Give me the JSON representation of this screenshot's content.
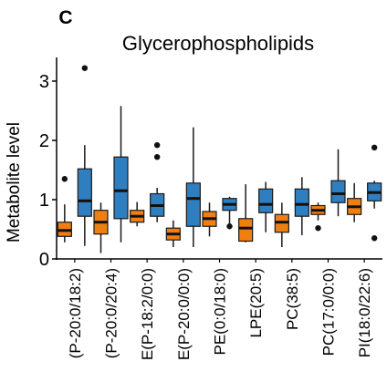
{
  "panel_label": "C",
  "chart_data": {
    "type": "box",
    "title": "Glycerophospholipids",
    "ylabel": "Metabolite level",
    "xlabel": "",
    "ylim": [
      0,
      3.4
    ],
    "yticks": [
      0,
      1,
      2,
      3
    ],
    "grid": false,
    "legend": "none",
    "colors": {
      "orange": "#F07F12",
      "blue": "#2F7EC0",
      "outline": "#1a1a1a"
    },
    "categories": [
      "(P-20:0/18:2)",
      "(P-20:0/20:4)",
      "E(P-18:2/0:0)",
      "E(P-20:0/0:0)",
      "PE(0:0/18:0)",
      "LPE(20:5)",
      "PC(38:5)",
      "PC(17:0/0:0)",
      "PI(18:0/22:6)"
    ],
    "series": [
      {
        "color": "orange",
        "boxes": [
          {
            "whisker_low": 0.28,
            "q1": 0.38,
            "median": 0.48,
            "q3": 0.62,
            "whisker_high": 0.92,
            "outliers": [
              1.35
            ]
          },
          {
            "whisker_low": 0.1,
            "q1": 0.42,
            "median": 0.62,
            "q3": 0.82,
            "whisker_high": 0.95,
            "outliers": []
          },
          {
            "whisker_low": 0.55,
            "q1": 0.62,
            "median": 0.72,
            "q3": 0.82,
            "whisker_high": 0.96,
            "outliers": []
          },
          {
            "whisker_low": 0.2,
            "q1": 0.32,
            "median": 0.42,
            "q3": 0.52,
            "whisker_high": 0.65,
            "outliers": []
          },
          {
            "whisker_low": 0.38,
            "q1": 0.55,
            "median": 0.68,
            "q3": 0.8,
            "whisker_high": 0.95,
            "outliers": []
          },
          {
            "whisker_low": 0.28,
            "q1": 0.3,
            "median": 0.52,
            "q3": 0.68,
            "whisker_high": 1.26,
            "outliers": []
          },
          {
            "whisker_low": 0.2,
            "q1": 0.45,
            "median": 0.62,
            "q3": 0.75,
            "whisker_high": 0.95,
            "outliers": []
          },
          {
            "whisker_low": 0.65,
            "q1": 0.75,
            "median": 0.82,
            "q3": 0.9,
            "whisker_high": 0.95,
            "outliers": [
              0.52
            ]
          },
          {
            "whisker_low": 0.62,
            "q1": 0.75,
            "median": 0.88,
            "q3": 1.02,
            "whisker_high": 1.28,
            "outliers": []
          }
        ]
      },
      {
        "color": "blue",
        "boxes": [
          {
            "whisker_low": 0.22,
            "q1": 0.72,
            "median": 0.98,
            "q3": 1.52,
            "whisker_high": 1.92,
            "outliers": [
              3.22
            ]
          },
          {
            "whisker_low": 0.28,
            "q1": 0.68,
            "median": 1.15,
            "q3": 1.72,
            "whisker_high": 2.58,
            "outliers": []
          },
          {
            "whisker_low": 0.62,
            "q1": 0.72,
            "median": 0.9,
            "q3": 1.1,
            "whisker_high": 1.2,
            "outliers": [
              1.72,
              1.92
            ]
          },
          {
            "whisker_low": 0.2,
            "q1": 0.55,
            "median": 1.02,
            "q3": 1.28,
            "whisker_high": 2.22,
            "outliers": []
          },
          {
            "whisker_low": 0.58,
            "q1": 0.82,
            "median": 0.92,
            "q3": 1.02,
            "whisker_high": 1.05,
            "outliers": [
              0.55
            ]
          },
          {
            "whisker_low": 0.45,
            "q1": 0.78,
            "median": 0.92,
            "q3": 1.18,
            "whisker_high": 1.3,
            "outliers": []
          },
          {
            "whisker_low": 0.4,
            "q1": 0.72,
            "median": 0.92,
            "q3": 1.18,
            "whisker_high": 1.38,
            "outliers": []
          },
          {
            "whisker_low": 0.72,
            "q1": 0.95,
            "median": 1.1,
            "q3": 1.32,
            "whisker_high": 1.85,
            "outliers": []
          },
          {
            "whisker_low": 0.85,
            "q1": 0.98,
            "median": 1.12,
            "q3": 1.28,
            "whisker_high": 1.32,
            "outliers": [
              1.88,
              0.35
            ]
          }
        ]
      }
    ]
  }
}
